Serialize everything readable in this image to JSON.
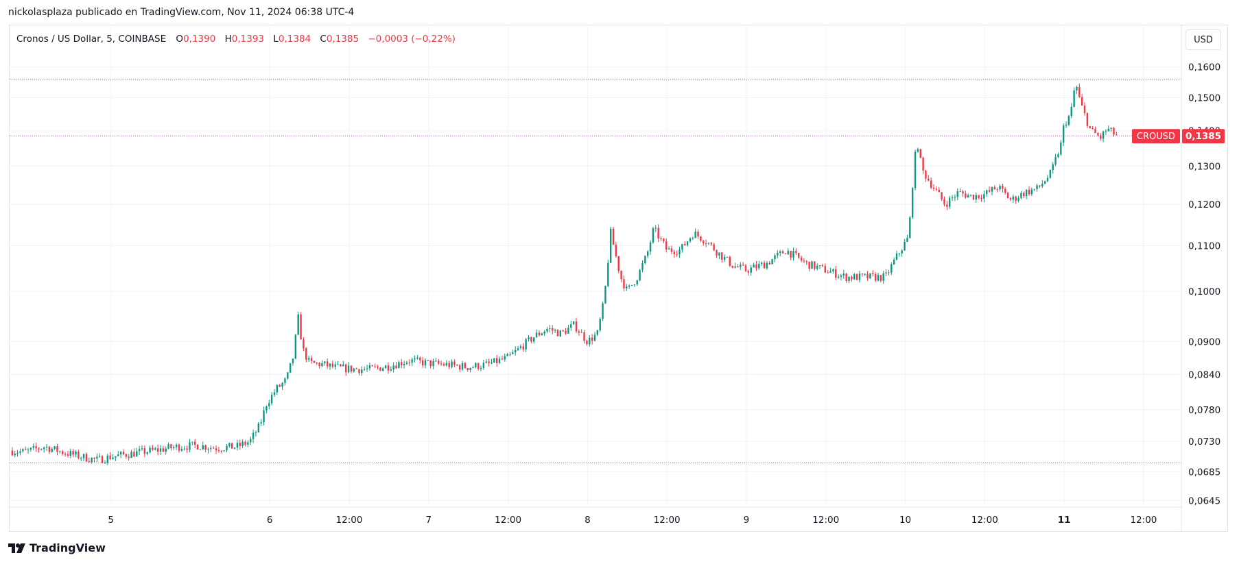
{
  "credit": "nickolasplaza publicado en TradingView.com, Nov 11, 2024 06:38 UTC-4",
  "currency_button": "USD",
  "brand": "TradingView",
  "legend": {
    "symbol": "Cronos / US Dollar, 5, COINBASE",
    "o_label": "O",
    "o_value": "0,1390",
    "h_label": "H",
    "h_value": "0,1393",
    "l_label": "L",
    "l_value": "0,1384",
    "c_label": "C",
    "c_value": "0,1385",
    "change": "−0,0003 (−0,22%)"
  },
  "colors": {
    "up": "#089981",
    "down": "#f23645",
    "grid": "#f0f3fa",
    "hline": "#9c27b0",
    "axis_text": "#131722",
    "price_tag": "#f23645"
  },
  "chart_data": {
    "type": "candlestick",
    "symbol": "CROUSD",
    "scale": "log",
    "last_price": 0.1385,
    "last_price_label": "0,1385",
    "price_tag_label": "CROUSD",
    "y_ticks": [
      {
        "value": 0.16,
        "label": "0,1600"
      },
      {
        "value": 0.15,
        "label": "0,1500"
      },
      {
        "value": 0.14,
        "label": "0,1400"
      },
      {
        "value": 0.13,
        "label": "0,1300"
      },
      {
        "value": 0.12,
        "label": "0,1200"
      },
      {
        "value": 0.11,
        "label": "0,1100"
      },
      {
        "value": 0.1,
        "label": "0,1000"
      },
      {
        "value": 0.09,
        "label": "0,0900"
      },
      {
        "value": 0.084,
        "label": "0,0840"
      },
      {
        "value": 0.078,
        "label": "0,0780"
      },
      {
        "value": 0.073,
        "label": "0,0730"
      },
      {
        "value": 0.0685,
        "label": "0,0685"
      },
      {
        "value": 0.0645,
        "label": "0,0645"
      }
    ],
    "x_ticks": [
      {
        "t": 24,
        "label": "5",
        "bold": false
      },
      {
        "t": 48,
        "label": "6",
        "bold": false
      },
      {
        "t": 60,
        "label": "12:00",
        "bold": false
      },
      {
        "t": 72,
        "label": "7",
        "bold": false
      },
      {
        "t": 84,
        "label": "12:00",
        "bold": false
      },
      {
        "t": 96,
        "label": "8",
        "bold": false
      },
      {
        "t": 108,
        "label": "12:00",
        "bold": false
      },
      {
        "t": 120,
        "label": "9",
        "bold": false
      },
      {
        "t": 132,
        "label": "12:00",
        "bold": false
      },
      {
        "t": 144,
        "label": "10",
        "bold": false
      },
      {
        "t": 156,
        "label": "12:00",
        "bold": false
      },
      {
        "t": 168,
        "label": "11",
        "bold": true
      },
      {
        "t": 180,
        "label": "12:00",
        "bold": false
      }
    ],
    "x_range": [
      8.7,
      185.5
    ],
    "y_range": [
      0.0638,
      0.1665
    ],
    "horizontal_lines": [
      0.156,
      0.1385,
      0.0698
    ],
    "close_path": [
      [
        8.7,
        0.0716
      ],
      [
        11,
        0.0714
      ],
      [
        14,
        0.0722
      ],
      [
        17,
        0.0713
      ],
      [
        20,
        0.0706
      ],
      [
        22,
        0.0702
      ],
      [
        24,
        0.0707
      ],
      [
        26,
        0.071
      ],
      [
        28,
        0.0713
      ],
      [
        31,
        0.0717
      ],
      [
        34,
        0.0722
      ],
      [
        37,
        0.0724
      ],
      [
        40,
        0.072
      ],
      [
        43,
        0.0722
      ],
      [
        45,
        0.073
      ],
      [
        46.5,
        0.0755
      ],
      [
        47.5,
        0.079
      ],
      [
        49,
        0.0815
      ],
      [
        50.5,
        0.083
      ],
      [
        51.5,
        0.087
      ],
      [
        52.3,
        0.0945
      ],
      [
        53,
        0.0885
      ],
      [
        54,
        0.086
      ],
      [
        56,
        0.0858
      ],
      [
        58,
        0.0852
      ],
      [
        60,
        0.085
      ],
      [
        63,
        0.0849
      ],
      [
        66,
        0.0855
      ],
      [
        69,
        0.0865
      ],
      [
        72,
        0.086
      ],
      [
        75,
        0.0857
      ],
      [
        78,
        0.0853
      ],
      [
        81,
        0.0858
      ],
      [
        84,
        0.087
      ],
      [
        86,
        0.089
      ],
      [
        88,
        0.091
      ],
      [
        90,
        0.0925
      ],
      [
        92,
        0.0915
      ],
      [
        94,
        0.0932
      ],
      [
        96,
        0.09
      ],
      [
        97.5,
        0.0915
      ],
      [
        98.5,
        0.098
      ],
      [
        99.5,
        0.113
      ],
      [
        101,
        0.103
      ],
      [
        102,
        0.1
      ],
      [
        103.5,
        0.103
      ],
      [
        105,
        0.108
      ],
      [
        106,
        0.114
      ],
      [
        108,
        0.109
      ],
      [
        110,
        0.109
      ],
      [
        112,
        0.113
      ],
      [
        114,
        0.111
      ],
      [
        116,
        0.108
      ],
      [
        118,
        0.1055
      ],
      [
        120,
        0.1045
      ],
      [
        123,
        0.106
      ],
      [
        126,
        0.109
      ],
      [
        129,
        0.106
      ],
      [
        132,
        0.1045
      ],
      [
        135,
        0.103
      ],
      [
        138,
        0.103
      ],
      [
        141,
        0.103
      ],
      [
        142.5,
        0.107
      ],
      [
        143.5,
        0.1095
      ],
      [
        144.5,
        0.112
      ],
      [
        145.3,
        0.13
      ],
      [
        145.8,
        0.137
      ],
      [
        146.5,
        0.129
      ],
      [
        148,
        0.125
      ],
      [
        150,
        0.12
      ],
      [
        152,
        0.123
      ],
      [
        154,
        0.122
      ],
      [
        156,
        0.1225
      ],
      [
        158,
        0.1245
      ],
      [
        160,
        0.121
      ],
      [
        162,
        0.123
      ],
      [
        164,
        0.124
      ],
      [
        166,
        0.128
      ],
      [
        167.5,
        0.136
      ],
      [
        168,
        0.142
      ],
      [
        169,
        0.145
      ],
      [
        169.7,
        0.155
      ],
      [
        170.5,
        0.148
      ],
      [
        172,
        0.14
      ],
      [
        173.5,
        0.138
      ],
      [
        174.5,
        0.1405
      ],
      [
        176,
        0.1385
      ]
    ]
  }
}
